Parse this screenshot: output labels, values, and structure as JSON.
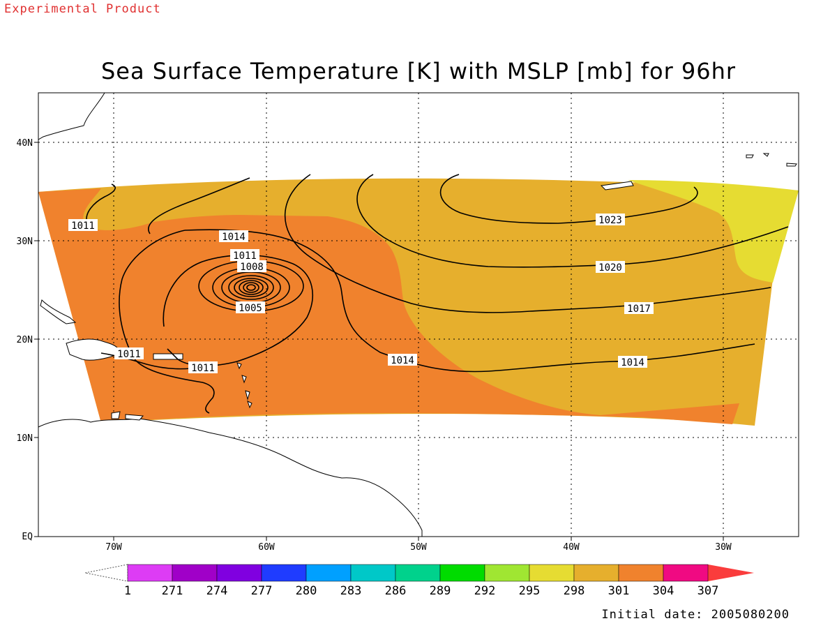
{
  "header": {
    "experimental": "Experimental Product",
    "title": "Sea Surface Temperature [K] with MSLP [mb] for 96hr"
  },
  "axes": {
    "lat_labels": [
      "40N",
      "30N",
      "20N",
      "10N",
      "EQ"
    ],
    "lon_labels": [
      "70W",
      "60W",
      "50W",
      "40W",
      "30W"
    ]
  },
  "isobar_labels": [
    "1011",
    "1014",
    "1011",
    "1008",
    "1005",
    "1011",
    "1011",
    "1014",
    "1023",
    "1020",
    "1017",
    "1014"
  ],
  "colorbar": {
    "tick_labels": [
      "1",
      "271",
      "274",
      "277",
      "280",
      "283",
      "286",
      "289",
      "292",
      "295",
      "298",
      "301",
      "304",
      "307"
    ],
    "colors": [
      "#dd3cf5",
      "#a000c8",
      "#8000e0",
      "#1f3cff",
      "#00a0ff",
      "#00c8c8",
      "#00d28c",
      "#00dc00",
      "#a0e632",
      "#e6dc32",
      "#e6af2d",
      "#f0822d",
      "#f00a82",
      "#fa3c3c"
    ]
  },
  "footer": {
    "initial_date": "Initial date: 2005080200"
  },
  "colors": {
    "sst_298": "#e6dc32",
    "sst_301": "#e6af2d",
    "sst_304": "#f0822d",
    "experimental_text": "#e03030",
    "land_outline": "#000000"
  }
}
